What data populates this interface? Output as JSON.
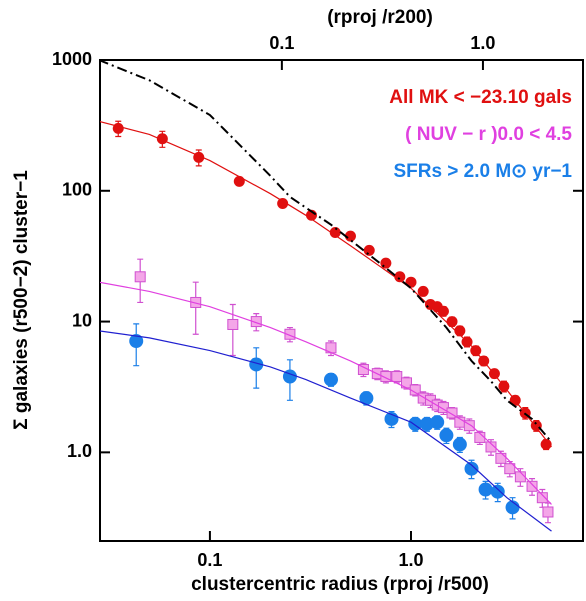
{
  "chart_data": {
    "type": "scatter",
    "xlabel": "clustercentric radius (rproj /r500)",
    "ylabel": "Σ galaxies (r500−2) cluster−1",
    "x2label": "(rproj /r200)",
    "xscale": "log",
    "yscale": "log",
    "xlim": [
      0.0284,
      7.17
    ],
    "ylim": [
      0.21,
      1000
    ],
    "x2lim": [
      0.01246,
      3.145
    ],
    "xticks": [
      0.1,
      {
        "value": 1,
        "label": "1.0"
      }
    ],
    "x2ticks": [
      0.1,
      {
        "value": 1,
        "label": "1.0"
      }
    ],
    "yticks": [
      1000,
      100,
      10,
      {
        "value": 1,
        "label": "1.0"
      }
    ],
    "series": [
      {
        "name": "All MK < −23.10 gals",
        "color": "#e01010",
        "marker": "circle",
        "x": [
          0.035,
          0.058,
          0.088,
          0.14,
          0.23,
          0.32,
          0.42,
          0.5,
          0.62,
          0.75,
          0.88,
          1.0,
          1.15,
          1.25,
          1.35,
          1.45,
          1.6,
          1.75,
          1.9,
          2.1,
          2.3,
          2.6,
          2.9,
          3.3,
          3.7,
          4.2,
          4.7
        ],
        "values": [
          300,
          250,
          180,
          118,
          80,
          65,
          48,
          45,
          35,
          28,
          22,
          20,
          17,
          13.5,
          13,
          12,
          10,
          8.5,
          7,
          6,
          5,
          4,
          3.2,
          2.5,
          2.0,
          1.6,
          1.15
        ],
        "errors": [
          40,
          35,
          25,
          8,
          5,
          4,
          3,
          3,
          2,
          2,
          1.5,
          1.5,
          1,
          1,
          1,
          1,
          0.8,
          0.7,
          0.6,
          0.5,
          0.4,
          0.3,
          0.3,
          0.2,
          0.2,
          0.15,
          0.1
        ]
      },
      {
        "name": "( NUV − r )0.0 < 4.5",
        "color": "#f4a6e8",
        "edge": "#d050d0",
        "marker": "square",
        "x": [
          0.045,
          0.085,
          0.13,
          0.17,
          0.25,
          0.4,
          0.58,
          0.68,
          0.75,
          0.85,
          0.95,
          1.05,
          1.15,
          1.25,
          1.35,
          1.45,
          1.6,
          1.75,
          1.95,
          2.2,
          2.5,
          2.8,
          3.1,
          3.5,
          4.0,
          4.5,
          4.8
        ],
        "values": [
          22,
          14,
          9.5,
          10,
          8,
          6.3,
          4.3,
          4.0,
          3.8,
          3.8,
          3.4,
          3.0,
          2.6,
          2.5,
          2.3,
          2.2,
          2.0,
          1.7,
          1.6,
          1.3,
          1.1,
          0.9,
          0.75,
          0.65,
          0.55,
          0.45,
          0.35
        ],
        "errors": [
          8,
          6,
          4,
          1.5,
          1,
          0.8,
          0.5,
          0.4,
          0.4,
          0.4,
          0.35,
          0.3,
          0.3,
          0.3,
          0.25,
          0.25,
          0.2,
          0.2,
          0.2,
          0.15,
          0.15,
          0.12,
          0.1,
          0.1,
          0.08,
          0.07,
          0.06
        ]
      },
      {
        "name": "SFRs > 2.0 M⊙ yr−1",
        "color": "#1a7fe8",
        "marker": "circle",
        "x": [
          0.043,
          0.17,
          0.25,
          0.4,
          0.6,
          0.8,
          1.05,
          1.2,
          1.35,
          1.5,
          1.75,
          2.0,
          2.35,
          2.7,
          3.2
        ],
        "values": [
          7.1,
          4.7,
          3.8,
          3.6,
          2.6,
          1.8,
          1.65,
          1.65,
          1.7,
          1.35,
          1.15,
          0.75,
          0.52,
          0.5,
          0.38
        ],
        "errors": [
          2.5,
          1.6,
          1.3,
          0.4,
          0.3,
          0.25,
          0.2,
          0.2,
          0.2,
          0.18,
          0.15,
          0.12,
          0.08,
          0.08,
          0.07
        ]
      },
      {
        "color": "#e01010",
        "marker": "line",
        "x": [
          0.028,
          0.05,
          0.1,
          0.2,
          0.3,
          0.5,
          1,
          2,
          3,
          5
        ],
        "values": [
          340,
          270,
          170,
          95,
          65,
          38,
          18,
          6.5,
          3,
          1.1
        ]
      },
      {
        "color": "#e040e0",
        "marker": "line",
        "x": [
          0.028,
          0.05,
          0.1,
          0.2,
          0.3,
          0.5,
          1,
          2,
          3,
          5
        ],
        "values": [
          20,
          17,
          13,
          9,
          7,
          5,
          3,
          1.6,
          0.9,
          0.4
        ]
      },
      {
        "color": "#2020d0",
        "marker": "line",
        "x": [
          0.028,
          0.05,
          0.1,
          0.2,
          0.3,
          0.5,
          1,
          2,
          3,
          5
        ],
        "values": [
          8.5,
          7.5,
          6,
          4.5,
          3.6,
          2.6,
          1.7,
          0.8,
          0.45,
          0.25
        ]
      },
      {
        "color": "#000000",
        "marker": "dashdot",
        "x": [
          0.028,
          0.05,
          0.1,
          0.2,
          0.25,
          0.4,
          0.7,
          1,
          1.5,
          2,
          2.5,
          3,
          4,
          5
        ],
        "values": [
          1000,
          700,
          380,
          130,
          90,
          55,
          28,
          18,
          9,
          5,
          3.5,
          2.5,
          1.8,
          1.2
        ]
      }
    ]
  }
}
